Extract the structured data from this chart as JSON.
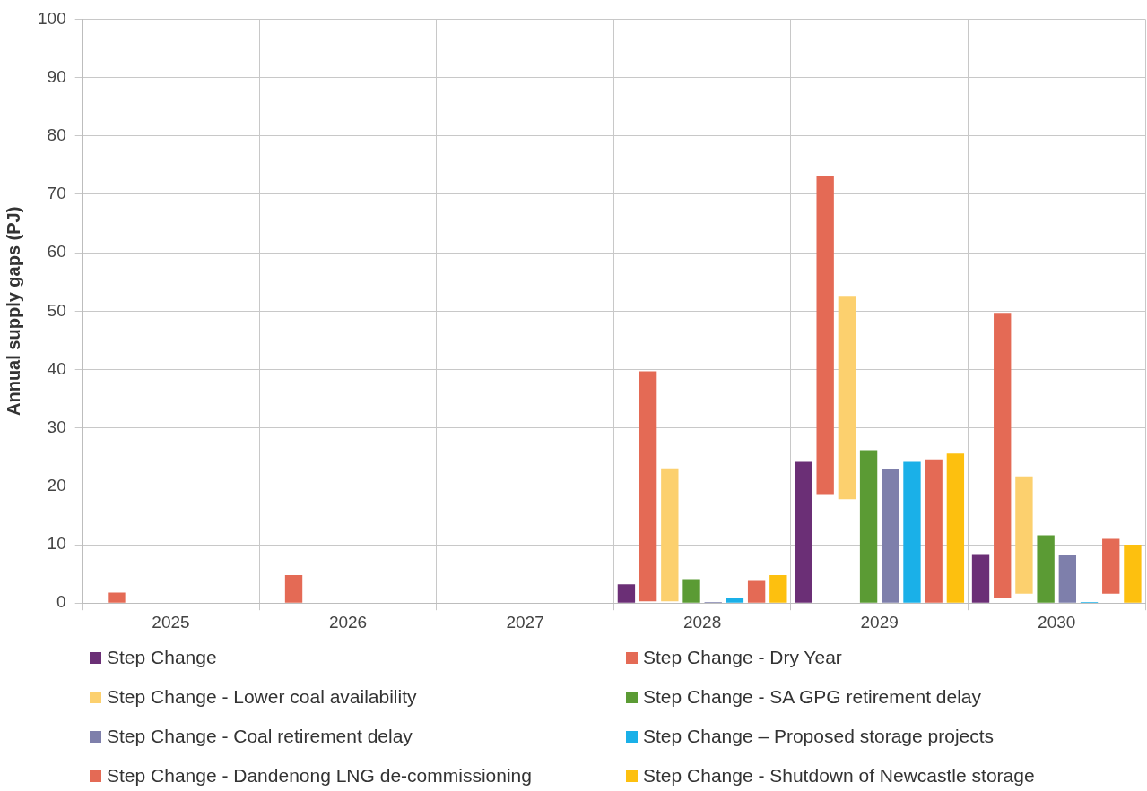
{
  "chart_data": {
    "type": "bar",
    "ylabel": "Annual supply gaps (PJ)",
    "categories": [
      "2025",
      "2026",
      "2027",
      "2028",
      "2029",
      "2030"
    ],
    "ylim": [
      0,
      100
    ],
    "yticks": [
      0,
      10,
      20,
      30,
      40,
      50,
      60,
      70,
      80,
      90,
      100
    ],
    "grid": true,
    "legend": "bottom",
    "series": [
      {
        "name": "Step Change",
        "color": "#6b2f76",
        "values": [
          null,
          null,
          null,
          3.2,
          24.2,
          8.4
        ]
      },
      {
        "name": "Step Change - Dry Year",
        "color": "#e46a55",
        "values": [
          1.8,
          4.8,
          null,
          39.4,
          54.7,
          48.8
        ],
        "base": [
          0,
          0,
          null,
          0.3,
          18.5,
          0.9
        ]
      },
      {
        "name": "Step Change - Lower coal availability",
        "color": "#fcd06e",
        "values": [
          null,
          null,
          null,
          22.8,
          34.8,
          20.1
        ],
        "base": [
          null,
          null,
          null,
          0.3,
          17.8,
          1.6
        ]
      },
      {
        "name": "Step Change - SA GPG retirement delay",
        "color": "#5b9b34",
        "values": [
          null,
          null,
          null,
          4.1,
          26.2,
          11.6
        ]
      },
      {
        "name": "Step Change - Coal retirement delay",
        "color": "#7e7fab",
        "values": [
          null,
          null,
          null,
          0.2,
          22.9,
          8.3
        ]
      },
      {
        "name": "Step Change – Proposed storage projects",
        "color": "#1ab0e8",
        "values": [
          null,
          null,
          null,
          0.8,
          24.2,
          0.2
        ]
      },
      {
        "name": "Step Change - Dandenong LNG de-commissioning",
        "color": "#e46a55",
        "values": [
          null,
          null,
          null,
          3.8,
          24.6,
          9.4
        ],
        "base": [
          null,
          null,
          null,
          0,
          0,
          1.6
        ]
      },
      {
        "name": "Step Change - Shutdown of Newcastle storage",
        "color": "#fdc00f",
        "values": [
          null,
          null,
          null,
          4.8,
          25.6,
          10.0
        ]
      }
    ]
  }
}
